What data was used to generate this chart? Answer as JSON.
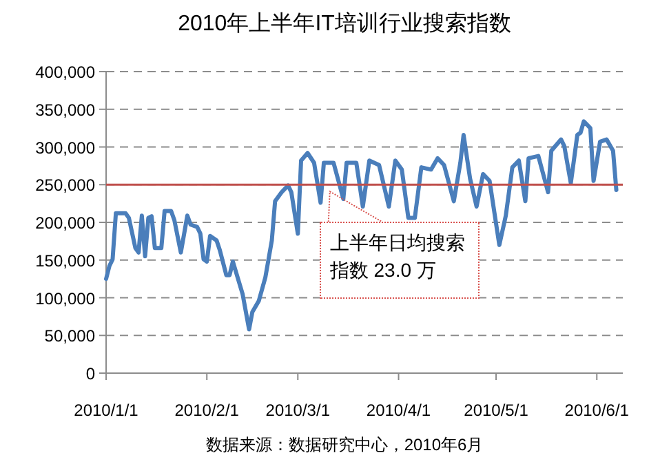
{
  "chart_data": {
    "type": "line",
    "title": "2010年上半年IT培训行业搜索指数",
    "x": [
      "2010-01-01",
      "2010-01-02",
      "2010-01-03",
      "2010-01-04",
      "2010-01-07",
      "2010-01-08",
      "2010-01-10",
      "2010-01-11",
      "2010-01-12",
      "2010-01-13",
      "2010-01-14",
      "2010-01-15",
      "2010-01-16",
      "2010-01-18",
      "2010-01-19",
      "2010-01-21",
      "2010-01-22",
      "2010-01-24",
      "2010-01-26",
      "2010-01-27",
      "2010-01-29",
      "2010-01-30",
      "2010-01-31",
      "2010-02-01",
      "2010-02-02",
      "2010-02-04",
      "2010-02-05",
      "2010-02-07",
      "2010-02-08",
      "2010-02-09",
      "2010-02-12",
      "2010-02-14",
      "2010-02-15",
      "2010-02-17",
      "2010-02-19",
      "2010-02-21",
      "2010-02-22",
      "2010-02-24",
      "2010-02-26",
      "2010-02-27",
      "2010-03-01",
      "2010-03-02",
      "2010-03-04",
      "2010-03-06",
      "2010-03-08",
      "2010-03-09",
      "2010-03-12",
      "2010-03-15",
      "2010-03-16",
      "2010-03-19",
      "2010-03-21",
      "2010-03-23",
      "2010-03-26",
      "2010-03-29",
      "2010-03-31",
      "2010-04-02",
      "2010-04-04",
      "2010-04-06",
      "2010-04-08",
      "2010-04-11",
      "2010-04-13",
      "2010-04-15",
      "2010-04-18",
      "2010-04-20",
      "2010-04-21",
      "2010-04-23",
      "2010-04-25",
      "2010-04-27",
      "2010-04-29",
      "2010-05-02",
      "2010-05-04",
      "2010-05-06",
      "2010-05-08",
      "2010-05-10",
      "2010-05-11",
      "2010-05-14",
      "2010-05-17",
      "2010-05-18",
      "2010-05-21",
      "2010-05-22",
      "2010-05-24",
      "2010-05-26",
      "2010-05-27",
      "2010-05-28",
      "2010-05-30",
      "2010-05-31",
      "2010-06-02",
      "2010-06-04",
      "2010-06-06",
      "2010-06-07"
    ],
    "series": [
      {
        "color": "#4a7ebb",
        "values": [
          125000,
          142000,
          151000,
          212000,
          212000,
          206000,
          166000,
          160000,
          209000,
          155000,
          206000,
          208000,
          166000,
          166000,
          215000,
          215000,
          203000,
          160000,
          209000,
          197000,
          194000,
          185000,
          151000,
          148000,
          182000,
          176000,
          163000,
          130000,
          130000,
          148000,
          105000,
          58000,
          81000,
          96000,
          127000,
          176000,
          228000,
          240000,
          249000,
          240000,
          185000,
          282000,
          292000,
          279000,
          226000,
          279000,
          279000,
          231000,
          279000,
          279000,
          221000,
          282000,
          276000,
          221000,
          282000,
          270000,
          206000,
          206000,
          273000,
          270000,
          285000,
          276000,
          228000,
          279000,
          316000,
          258000,
          221000,
          264000,
          255000,
          170000,
          209000,
          273000,
          282000,
          228000,
          285000,
          288000,
          240000,
          295000,
          310000,
          301000,
          252000,
          316000,
          319000,
          334000,
          325000,
          255000,
          307000,
          310000,
          295000,
          243000
        ]
      }
    ],
    "xlim": [
      "2010-01-01",
      "2010-06-09"
    ],
    "xticks": [
      {
        "value": "2010-01-01",
        "label": "2010/1/1"
      },
      {
        "value": "2010-02-01",
        "label": "2010/2/1"
      },
      {
        "value": "2010-03-01",
        "label": "2010/3/1"
      },
      {
        "value": "2010-04-01",
        "label": "2010/4/1"
      },
      {
        "value": "2010-05-01",
        "label": "2010/5/1"
      },
      {
        "value": "2010-06-01",
        "label": "2010/6/1"
      }
    ],
    "ylim": [
      0,
      400000
    ],
    "yticks": [
      {
        "value": 0,
        "label": "0"
      },
      {
        "value": 50000,
        "label": "50,000"
      },
      {
        "value": 100000,
        "label": "100,000"
      },
      {
        "value": 150000,
        "label": "150,000"
      },
      {
        "value": 200000,
        "label": "200,000"
      },
      {
        "value": 250000,
        "label": "250,000"
      },
      {
        "value": 300000,
        "label": "300,000"
      },
      {
        "value": 350000,
        "label": "350,000"
      },
      {
        "value": 400000,
        "label": "400,000"
      }
    ],
    "grid": "y",
    "ref_lines": [
      {
        "axis": "y",
        "value": 250000,
        "color": "#c0504d"
      }
    ],
    "annotations": [
      {
        "text": "上半年日均搜索指数 23.0 万",
        "x": "2010-03-10",
        "y": 250000
      },
      "数据来源：数据研究中心，2010年6月"
    ]
  }
}
